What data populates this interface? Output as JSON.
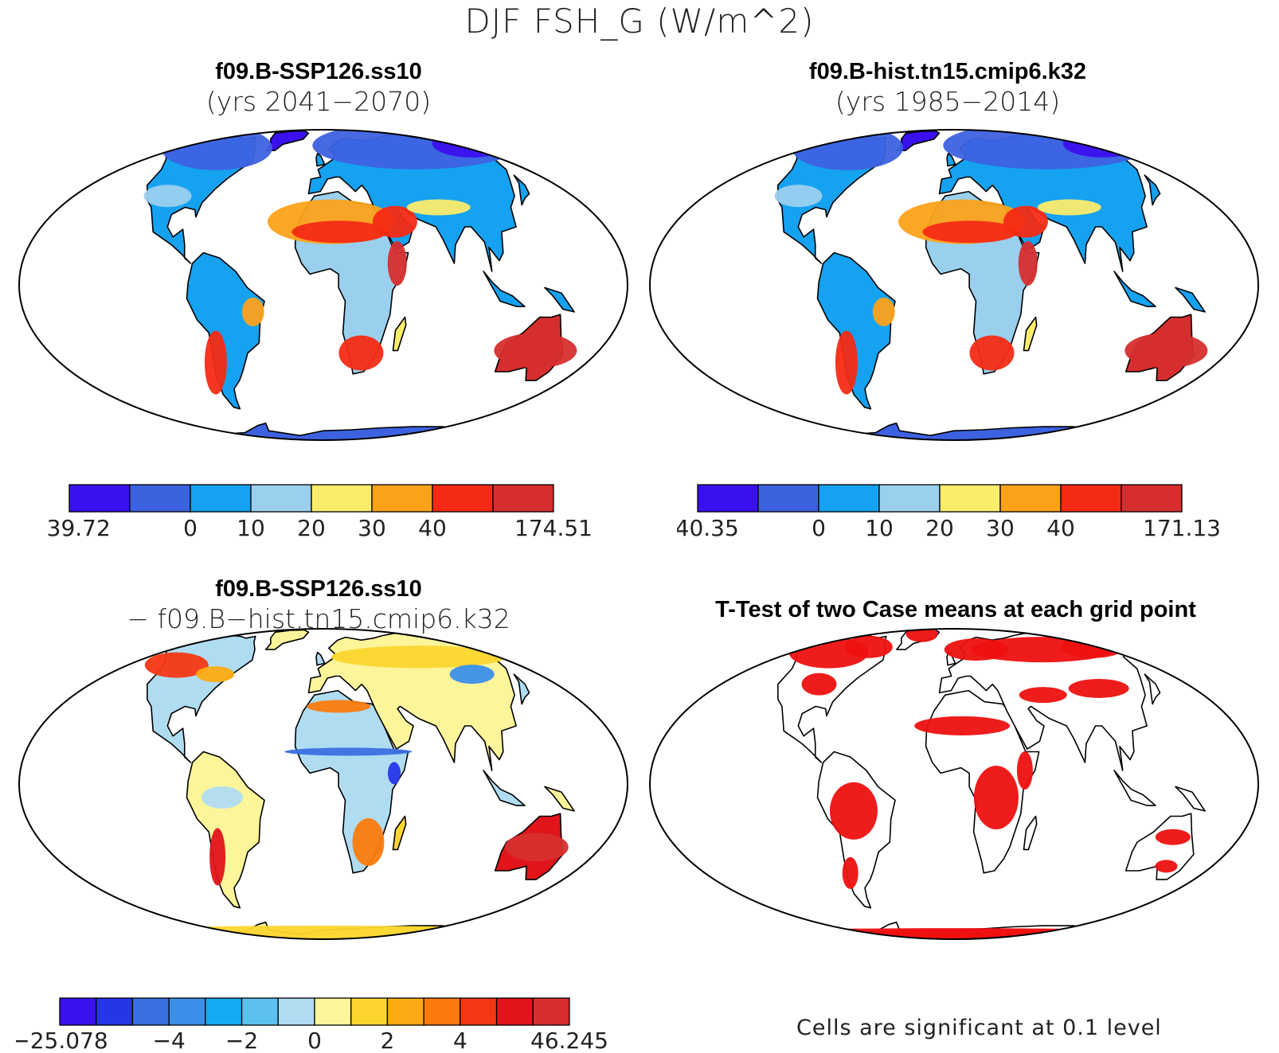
{
  "figure": {
    "title": "DJF FSH_G (W/m^2)"
  },
  "panels": [
    {
      "id": "case1",
      "title_line1": "f09.B-SSP126.ss10",
      "title_line2": "(yrs 2041−2070)",
      "colorbar": {
        "colors": [
          "#3b10ef",
          "#3d62e0",
          "#15a2f0",
          "#9ad0ee",
          "#fbed6c",
          "#fca21a",
          "#f42b14",
          "#d62e2e"
        ],
        "tick_labels": [
          "−39.72",
          "0",
          "10",
          "20",
          "30",
          "40",
          "174.51"
        ]
      }
    },
    {
      "id": "case2",
      "title_line1": "f09.B-hist.tn15.cmip6.k32",
      "title_line2": "(yrs 1985−2014)",
      "colorbar": {
        "colors": [
          "#3b10ef",
          "#3d62e0",
          "#15a2f0",
          "#9ad0ee",
          "#fbed6c",
          "#fca21a",
          "#f42b14",
          "#d62e2e"
        ],
        "tick_labels": [
          "−40.35",
          "0",
          "10",
          "20",
          "30",
          "40",
          "171.13"
        ]
      }
    },
    {
      "id": "difference",
      "title_line1": "f09.B-SSP126.ss10",
      "title_line2": "− f09.B−hist.tn15.cmip6.k32",
      "colorbar": {
        "colors": [
          "#3b10ef",
          "#2535e8",
          "#3a6fe0",
          "#3b8fe8",
          "#14a9f2",
          "#5cc0f0",
          "#b0dcf2",
          "#fdf59a",
          "#fcd62e",
          "#fcab12",
          "#fc7a0c",
          "#f43714",
          "#e0141a",
          "#d62e2e"
        ],
        "tick_labels": [
          "−25.078",
          "−4",
          "−2",
          "0",
          "2",
          "4",
          "46.245"
        ]
      }
    },
    {
      "id": "ttest",
      "title_line1": "T-Test of two Case means at each grid point",
      "significance_color": "#ee1010",
      "note": "Cells are significant at 0.1 level"
    }
  ]
}
